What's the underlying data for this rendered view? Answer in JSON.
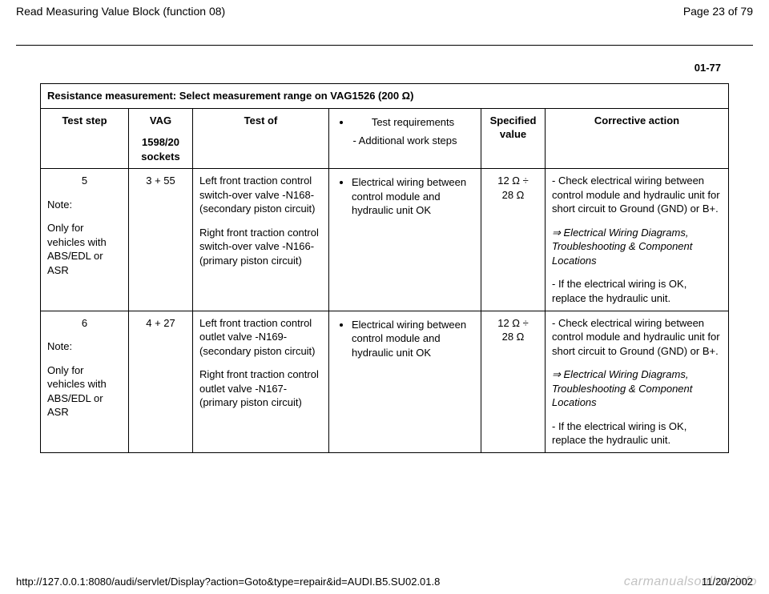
{
  "header": {
    "title": "Read Measuring Value Block (function 08)",
    "page_label": "Page 23 of 79"
  },
  "section_number": "01-77",
  "table": {
    "title": "Resistance measurement: Select measurement range on VAG1526 (200 Ω)",
    "columns": {
      "test_step": "Test step",
      "vag_line1": "VAG",
      "vag_line2": "1598/20 sockets",
      "test_of": "Test of",
      "req_bullet": "Test requirements",
      "req_dash": "- Additional work steps",
      "specified": "Specified value",
      "corrective": "Corrective action"
    },
    "rows": [
      {
        "step_num": "5",
        "note_label": "Note:",
        "note_text": "Only for vehicles with ABS/EDL or ASR",
        "vag": "3 + 55",
        "test_of_1": "Left front traction control switch-over valve -N168- (secondary piston circuit)",
        "test_of_2": "Right front traction control switch-over valve -N166- (primary piston circuit)",
        "req": "Electrical wiring between control module and hydraulic unit OK",
        "spec_line1": "12 Ω ÷",
        "spec_line2": "28 Ω",
        "corr_1": "- Check electrical wiring between control module and hydraulic unit for short circuit to Ground (GND) or B+.",
        "corr_ref": "Electrical Wiring Diagrams, Troubleshooting & Component Locations",
        "corr_2": "- If the electrical wiring is OK, replace the hydraulic unit."
      },
      {
        "step_num": "6",
        "note_label": "Note:",
        "note_text": "Only for vehicles with ABS/EDL or ASR",
        "vag": "4 + 27",
        "test_of_1": "Left front traction control outlet valve -N169- (secondary piston circuit)",
        "test_of_2": "Right front traction control outlet valve -N167- (primary piston circuit)",
        "req": "Electrical wiring between control module and hydraulic unit OK",
        "spec_line1": "12 Ω ÷",
        "spec_line2": "28 Ω",
        "corr_1": "- Check electrical wiring between control module and hydraulic unit for short circuit to Ground (GND) or B+.",
        "corr_ref": "Electrical Wiring Diagrams, Troubleshooting & Component Locations",
        "corr_2": "- If the electrical wiring is OK, replace the hydraulic unit."
      }
    ]
  },
  "footer": {
    "url": "http://127.0.0.1:8080/audi/servlet/Display?action=Goto&type=repair&id=AUDI.B5.SU02.01.8",
    "date": "11/20/2002",
    "watermark": "carmanualsonline.info"
  }
}
